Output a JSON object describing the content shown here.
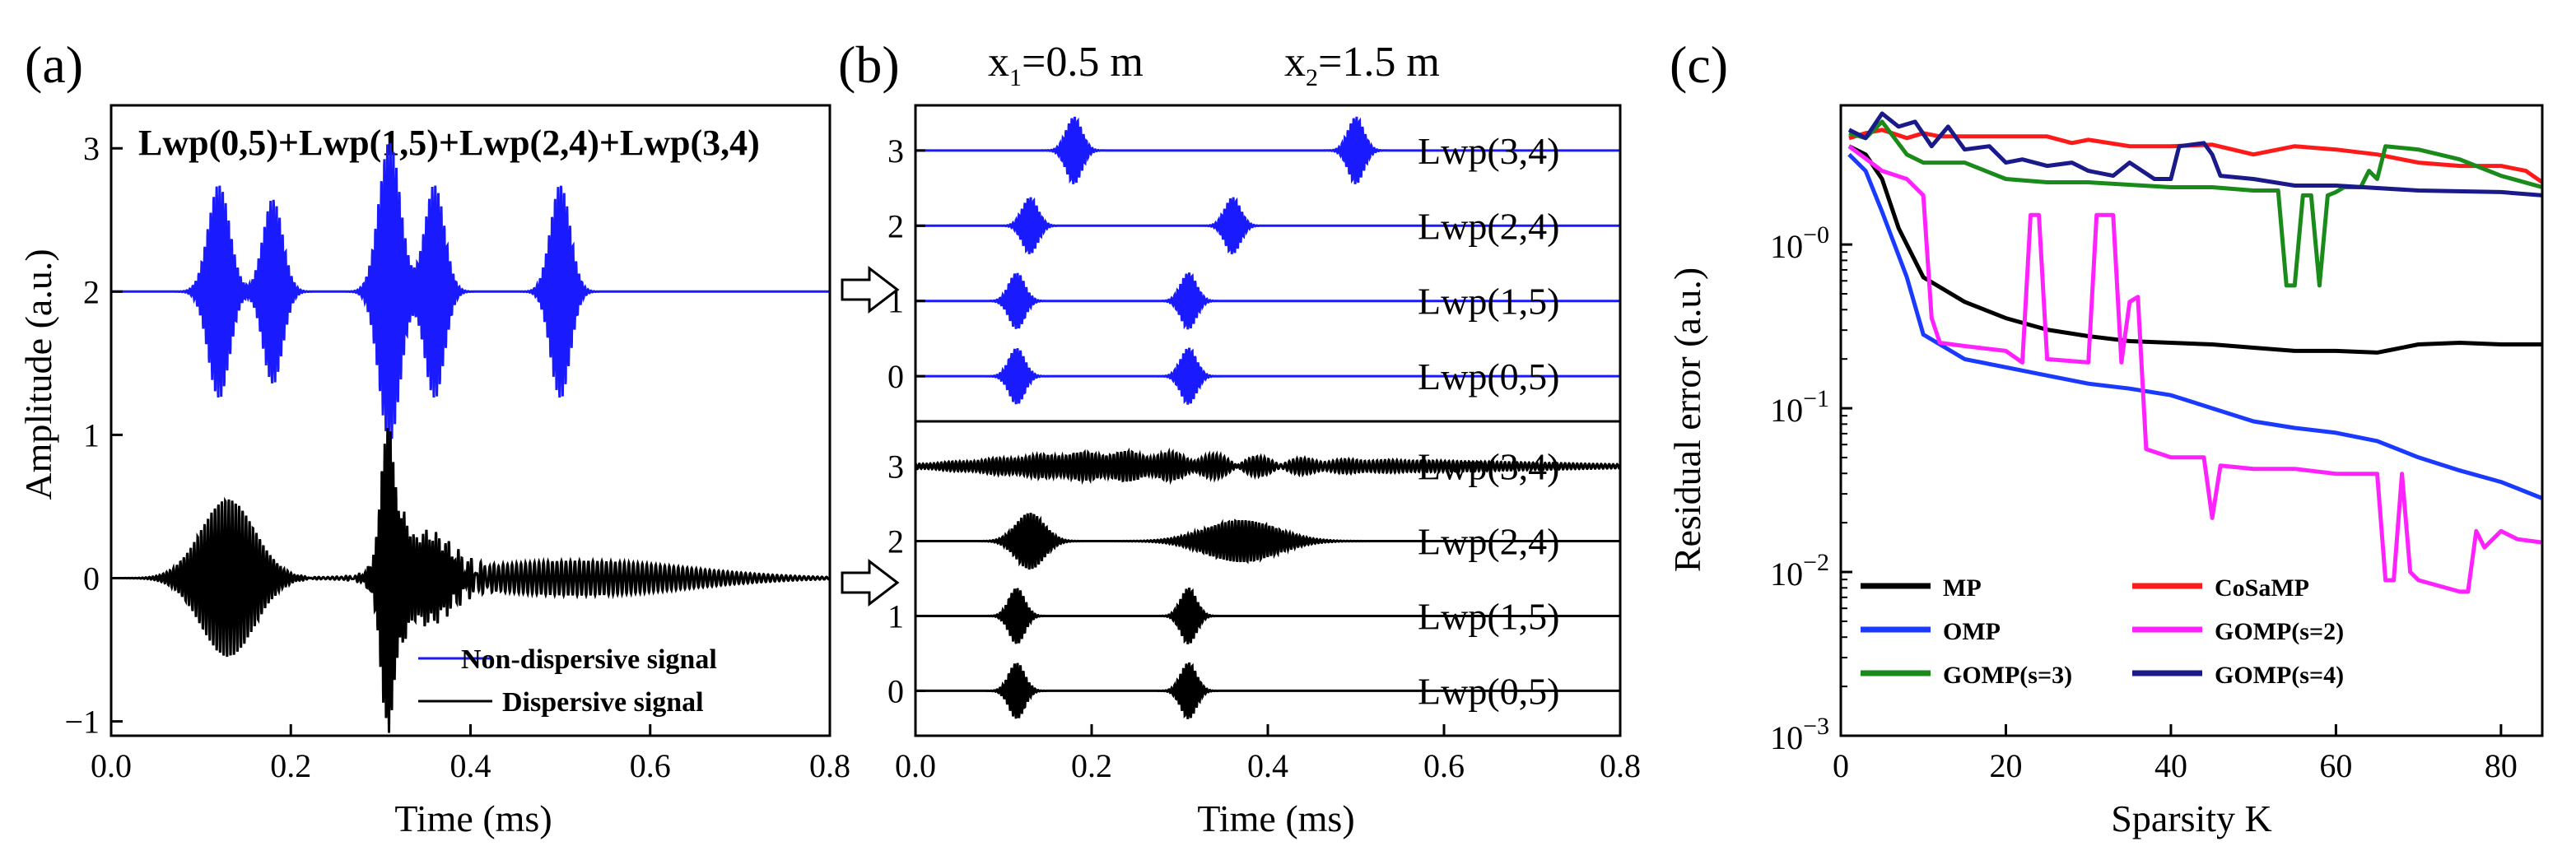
{
  "chart_data": [
    {
      "id": "a",
      "panel_label": "(a)",
      "type": "line",
      "title": "Lwp(0,5)+Lwp(1,5)+Lwp(2,4)+Lwp(3,4)",
      "xlabel": "Time (ms)",
      "ylabel": "Amplitude (a.u.)",
      "xlim": [
        0.0,
        0.8
      ],
      "ylim": [
        -1.1,
        3.3
      ],
      "xticks": [
        "0.0",
        "0.2",
        "0.4",
        "0.6",
        "0.8"
      ],
      "yticks": [
        "−1",
        "0",
        "1",
        "2",
        "3"
      ],
      "series": [
        {
          "name": "Non-dispersive signal",
          "color": "#1a1aff",
          "baseline": 2,
          "packets": [
            {
              "t": 0.12,
              "amp": 0.75,
              "width": 0.012,
              "freq": 300
            },
            {
              "t": 0.18,
              "amp": 0.65,
              "width": 0.011,
              "freq": 300
            },
            {
              "t": 0.31,
              "amp": 1.05,
              "width": 0.012,
              "freq": 300
            },
            {
              "t": 0.36,
              "amp": 0.75,
              "width": 0.011,
              "freq": 300
            },
            {
              "t": 0.5,
              "amp": 0.75,
              "width": 0.011,
              "freq": 300
            }
          ]
        },
        {
          "name": "Dispersive signal",
          "color": "#000000",
          "baseline": 0,
          "packets": [
            {
              "t": 0.13,
              "amp": 0.55,
              "width": 0.03,
              "freq": 260
            },
            {
              "t": 0.31,
              "amp": 1.0,
              "width": 0.01,
              "freq": 320
            },
            {
              "t": 0.35,
              "amp": 0.3,
              "width": 0.03,
              "freq": 280
            },
            {
              "t": 0.52,
              "amp": 0.12,
              "width": 0.12,
              "freq": 200
            }
          ]
        }
      ]
    },
    {
      "id": "b",
      "panel_label": "(b)",
      "type": "line",
      "annotations": [
        {
          "main": "x",
          "sub": "1",
          "rest": "=0.5 m"
        },
        {
          "main": "x",
          "sub": "2",
          "rest": "=1.5 m"
        }
      ],
      "xlabel": "Time (ms)",
      "xlim": [
        0.0,
        0.8
      ],
      "xticks": [
        "0.0",
        "0.2",
        "0.4",
        "0.6",
        "0.8"
      ],
      "yticks": [
        "0",
        "1",
        "2",
        "3"
      ],
      "top_subplot": {
        "color": "#1a1aff",
        "traces": [
          {
            "label": "Lwp(0,5)",
            "level": 0,
            "packets": [
              {
                "t": 0.115,
                "amp": 0.38,
                "width": 0.009,
                "freq": 300
              },
              {
                "t": 0.31,
                "amp": 0.38,
                "width": 0.009,
                "freq": 300
              }
            ]
          },
          {
            "label": "Lwp(1,5)",
            "level": 1,
            "packets": [
              {
                "t": 0.115,
                "amp": 0.38,
                "width": 0.009,
                "freq": 300
              },
              {
                "t": 0.31,
                "amp": 0.38,
                "width": 0.009,
                "freq": 300
              }
            ]
          },
          {
            "label": "Lwp(2,4)",
            "level": 2,
            "packets": [
              {
                "t": 0.13,
                "amp": 0.38,
                "width": 0.009,
                "freq": 300
              },
              {
                "t": 0.36,
                "amp": 0.38,
                "width": 0.009,
                "freq": 300
              }
            ]
          },
          {
            "label": "Lwp(3,4)",
            "level": 3,
            "packets": [
              {
                "t": 0.18,
                "amp": 0.45,
                "width": 0.009,
                "freq": 300
              },
              {
                "t": 0.5,
                "amp": 0.45,
                "width": 0.009,
                "freq": 300
              }
            ]
          }
        ]
      },
      "bottom_subplot": {
        "color": "#000000",
        "traces": [
          {
            "label": "Lwp(0,5)",
            "level": 0,
            "packets": [
              {
                "t": 0.115,
                "amp": 0.38,
                "width": 0.009,
                "freq": 300
              },
              {
                "t": 0.31,
                "amp": 0.38,
                "width": 0.009,
                "freq": 300
              }
            ]
          },
          {
            "label": "Lwp(1,5)",
            "level": 1,
            "packets": [
              {
                "t": 0.115,
                "amp": 0.38,
                "width": 0.009,
                "freq": 300
              },
              {
                "t": 0.31,
                "amp": 0.38,
                "width": 0.009,
                "freq": 300
              }
            ]
          },
          {
            "label": "Lwp(2,4)",
            "level": 2,
            "packets": [
              {
                "t": 0.13,
                "amp": 0.38,
                "width": 0.016,
                "freq": 280
              },
              {
                "t": 0.37,
                "amp": 0.28,
                "width": 0.04,
                "freq": 260
              }
            ]
          },
          {
            "label": "Lwp(3,4)",
            "level": 3,
            "packets": [
              {
                "t": 0.22,
                "amp": 0.17,
                "width": 0.12,
                "freq": 240
              },
              {
                "t": 0.5,
                "amp": 0.08,
                "width": 0.2,
                "freq": 220
              }
            ]
          }
        ]
      }
    },
    {
      "id": "c",
      "panel_label": "(c)",
      "type": "line",
      "yscale": "log",
      "xlabel": "Sparsity K",
      "ylabel": "Residual error (a.u.)",
      "xlim": [
        0,
        85
      ],
      "ylim_log10": [
        -3,
        0.85
      ],
      "xticks": [
        "0",
        "20",
        "40",
        "60",
        "80"
      ],
      "yticks": [
        {
          "base": "10",
          "exp": "−3"
        },
        {
          "base": "10",
          "exp": "−2"
        },
        {
          "base": "10",
          "exp": "−1"
        },
        {
          "base": "10",
          "exp": "−0"
        }
      ],
      "series": [
        {
          "name": "MP",
          "color": "#000000",
          "points": [
            [
              1,
              0.6
            ],
            [
              3,
              0.55
            ],
            [
              5,
              0.4
            ],
            [
              7,
              0.1
            ],
            [
              10,
              -0.2
            ],
            [
              15,
              -0.35
            ],
            [
              20,
              -0.45
            ],
            [
              25,
              -0.52
            ],
            [
              30,
              -0.56
            ],
            [
              35,
              -0.59
            ],
            [
              40,
              -0.6
            ],
            [
              45,
              -0.61
            ],
            [
              50,
              -0.63
            ],
            [
              55,
              -0.65
            ],
            [
              60,
              -0.65
            ],
            [
              65,
              -0.66
            ],
            [
              67,
              -0.64
            ],
            [
              70,
              -0.61
            ],
            [
              75,
              -0.6
            ],
            [
              80,
              -0.61
            ],
            [
              85,
              -0.61
            ]
          ]
        },
        {
          "name": "CoSaMP",
          "color": "#ff1a1a",
          "points": [
            [
              1,
              0.65
            ],
            [
              3,
              0.68
            ],
            [
              5,
              0.7
            ],
            [
              8,
              0.65
            ],
            [
              10,
              0.68
            ],
            [
              12,
              0.66
            ],
            [
              15,
              0.66
            ],
            [
              25,
              0.66
            ],
            [
              28,
              0.62
            ],
            [
              30,
              0.64
            ],
            [
              35,
              0.6
            ],
            [
              40,
              0.6
            ],
            [
              45,
              0.61
            ],
            [
              50,
              0.55
            ],
            [
              55,
              0.6
            ],
            [
              60,
              0.58
            ],
            [
              65,
              0.55
            ],
            [
              70,
              0.5
            ],
            [
              75,
              0.48
            ],
            [
              80,
              0.48
            ],
            [
              83,
              0.45
            ],
            [
              85,
              0.38
            ]
          ]
        },
        {
          "name": "OMP",
          "color": "#1a3aff",
          "points": [
            [
              1,
              0.55
            ],
            [
              3,
              0.45
            ],
            [
              5,
              0.2
            ],
            [
              8,
              -0.2
            ],
            [
              10,
              -0.55
            ],
            [
              15,
              -0.7
            ],
            [
              20,
              -0.75
            ],
            [
              25,
              -0.8
            ],
            [
              30,
              -0.85
            ],
            [
              35,
              -0.88
            ],
            [
              40,
              -0.92
            ],
            [
              45,
              -1.0
            ],
            [
              50,
              -1.08
            ],
            [
              55,
              -1.12
            ],
            [
              60,
              -1.15
            ],
            [
              65,
              -1.2
            ],
            [
              70,
              -1.3
            ],
            [
              75,
              -1.38
            ],
            [
              80,
              -1.45
            ],
            [
              85,
              -1.55
            ]
          ]
        },
        {
          "name": "GOMP(s=2)",
          "color": "#ff22ff",
          "points": [
            [
              1,
              0.6
            ],
            [
              5,
              0.45
            ],
            [
              8,
              0.4
            ],
            [
              10,
              0.3
            ],
            [
              11,
              -0.45
            ],
            [
              12,
              -0.6
            ],
            [
              15,
              -0.62
            ],
            [
              20,
              -0.65
            ],
            [
              22,
              -0.72
            ],
            [
              23,
              0.18
            ],
            [
              24,
              0.18
            ],
            [
              25,
              -0.7
            ],
            [
              30,
              -0.72
            ],
            [
              31,
              0.18
            ],
            [
              33,
              0.18
            ],
            [
              34,
              -0.72
            ],
            [
              35,
              -0.35
            ],
            [
              36,
              -0.32
            ],
            [
              37,
              -1.25
            ],
            [
              40,
              -1.3
            ],
            [
              44,
              -1.3
            ],
            [
              45,
              -1.67
            ],
            [
              46,
              -1.35
            ],
            [
              50,
              -1.37
            ],
            [
              55,
              -1.37
            ],
            [
              60,
              -1.4
            ],
            [
              64,
              -1.4
            ],
            [
              65,
              -1.4
            ],
            [
              66,
              -2.05
            ],
            [
              67,
              -2.05
            ],
            [
              68,
              -1.4
            ],
            [
              69,
              -2.0
            ],
            [
              70,
              -2.05
            ],
            [
              75,
              -2.12
            ],
            [
              76,
              -2.12
            ],
            [
              77,
              -1.75
            ],
            [
              78,
              -1.85
            ],
            [
              80,
              -1.75
            ],
            [
              82,
              -1.8
            ],
            [
              85,
              -1.82
            ]
          ]
        },
        {
          "name": "GOMP(s=3)",
          "color": "#1a8a1a",
          "points": [
            [
              1,
              0.68
            ],
            [
              3,
              0.65
            ],
            [
              5,
              0.75
            ],
            [
              8,
              0.55
            ],
            [
              10,
              0.5
            ],
            [
              15,
              0.5
            ],
            [
              20,
              0.4
            ],
            [
              25,
              0.38
            ],
            [
              30,
              0.38
            ],
            [
              40,
              0.35
            ],
            [
              45,
              0.35
            ],
            [
              50,
              0.33
            ],
            [
              53,
              0.33
            ],
            [
              54,
              -0.25
            ],
            [
              55,
              -0.25
            ],
            [
              56,
              0.3
            ],
            [
              57,
              0.3
            ],
            [
              58,
              -0.25
            ],
            [
              59,
              0.3
            ],
            [
              60,
              0.32
            ],
            [
              61,
              0.35
            ],
            [
              63,
              0.35
            ],
            [
              64,
              0.45
            ],
            [
              65,
              0.4
            ],
            [
              66,
              0.6
            ],
            [
              70,
              0.58
            ],
            [
              75,
              0.52
            ],
            [
              80,
              0.42
            ],
            [
              85,
              0.35
            ]
          ]
        },
        {
          "name": "GOMP(s=4)",
          "color": "#1a1a8a",
          "points": [
            [
              1,
              0.7
            ],
            [
              3,
              0.65
            ],
            [
              5,
              0.8
            ],
            [
              7,
              0.72
            ],
            [
              9,
              0.75
            ],
            [
              11,
              0.6
            ],
            [
              13,
              0.72
            ],
            [
              15,
              0.58
            ],
            [
              18,
              0.6
            ],
            [
              20,
              0.5
            ],
            [
              22,
              0.52
            ],
            [
              25,
              0.48
            ],
            [
              28,
              0.5
            ],
            [
              30,
              0.45
            ],
            [
              33,
              0.42
            ],
            [
              35,
              0.5
            ],
            [
              38,
              0.4
            ],
            [
              40,
              0.4
            ],
            [
              41,
              0.6
            ],
            [
              44,
              0.62
            ],
            [
              45,
              0.55
            ],
            [
              46,
              0.42
            ],
            [
              50,
              0.4
            ],
            [
              55,
              0.36
            ],
            [
              60,
              0.36
            ],
            [
              70,
              0.33
            ],
            [
              80,
              0.32
            ],
            [
              85,
              0.3
            ]
          ]
        }
      ]
    }
  ]
}
